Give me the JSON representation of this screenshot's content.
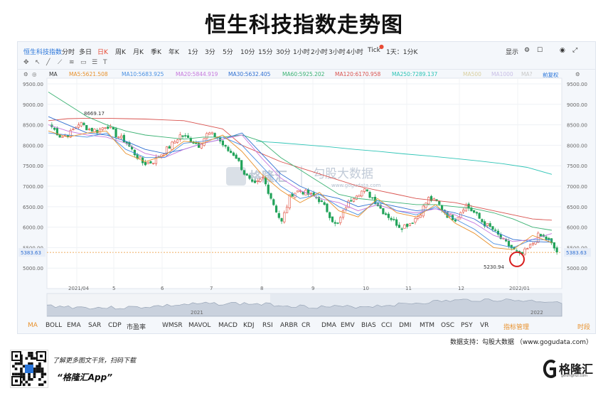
{
  "title": "恒生科技指数走势图",
  "toolbar": {
    "symbol": "恒生科技指数",
    "periods": [
      "分时",
      "多日",
      "日K",
      "周K",
      "月K",
      "季K",
      "年K",
      "1分",
      "3分",
      "5分",
      "10分",
      "15分",
      "30分",
      "1小时",
      "2小时",
      "3小时",
      "4小时",
      "Tick"
    ],
    "active_period": "日K",
    "interval_select": "1天：1分K",
    "display": "显示"
  },
  "toolbar2": {
    "ma_label": "MA"
  },
  "ma_legend": [
    {
      "label": "MA5:",
      "value": "5621.508",
      "color": "#e8912c"
    },
    {
      "label": "MA10:",
      "value": "5683.925",
      "color": "#4a90e2"
    },
    {
      "label": "MA20:",
      "value": "5844.919",
      "color": "#c678dd"
    },
    {
      "label": "MA30:",
      "value": "5632.405",
      "color": "#2f6fd1"
    },
    {
      "label": "MA60:",
      "value": "5925.202",
      "color": "#3bb273"
    },
    {
      "label": "MA120:",
      "value": "6170.958",
      "color": "#d9534f"
    },
    {
      "label": "MA250:",
      "value": "7289.137",
      "color": "#2ec4b6"
    }
  ],
  "ma_extra": [
    "MA500",
    "MA1000",
    "MA?"
  ],
  "adjust_label": "前复权",
  "watermark": {
    "brand": "格隆汇",
    "partner": "勾股大数据",
    "url": "www.gogudata.com"
  },
  "indicators": [
    "MA",
    "BOLL",
    "EMA",
    "SAR",
    "CDP",
    "市盈率",
    "WMSR",
    "MAVOL",
    "MACD",
    "KDJ",
    "RSI",
    "ARBR",
    "CR",
    "DMA",
    "EMV",
    "BIAS",
    "CCI",
    "DMI",
    "MTM",
    "OSC",
    "PSY",
    "VR"
  ],
  "indicator_manage": "指标管理",
  "indicator_right": "时段",
  "footer_note": "数据支持：勾股大数据 （www.gogudata.com）",
  "promo": {
    "line1": "了解更多图文干货，扫码下载",
    "line2": "“格隆汇App”"
  },
  "logo": {
    "text": "格隆汇",
    "sub": "gelonghui.com"
  },
  "chart_data": {
    "type": "candlestick",
    "title": "恒生科技指数走势图",
    "ylim": [
      4900,
      9500
    ],
    "y_ticks": [
      "9500.00",
      "9000.00",
      "8500.00",
      "8000.00",
      "7500.00",
      "7000.00",
      "6500.00",
      "6000.00",
      "5500.00",
      "5000.00"
    ],
    "x_ticks": [
      "2021/04",
      "5",
      "6",
      "7",
      "8",
      "9",
      "10",
      "11",
      "12",
      "2022/01"
    ],
    "overview_labels": [
      "2021",
      "2022"
    ],
    "last_price": "5383.63",
    "annotations": [
      {
        "label": "8669.17",
        "type": "high"
      },
      {
        "label": "5230.94",
        "type": "low"
      }
    ],
    "close_path": [
      8450,
      8200,
      8300,
      8550,
      8400,
      8350,
      8500,
      8250,
      8100,
      7800,
      7550,
      7600,
      7800,
      8000,
      8250,
      8150,
      8000,
      8300,
      8200,
      7900,
      7750,
      7300,
      7000,
      7200,
      6650,
      6100,
      6800,
      6900,
      6800,
      6700,
      6400,
      6000,
      6500,
      6800,
      6900,
      6700,
      6400,
      6200,
      6000,
      6100,
      6300,
      6700,
      6600,
      6300,
      6200,
      6550,
      6350,
      6100,
      5950,
      5700,
      5500,
      5300,
      5500,
      5800,
      5700,
      5400
    ],
    "series": [
      {
        "name": "MA120",
        "color": "#d9534f",
        "values": [
          8600,
          8650,
          8660,
          8660,
          8650,
          8640,
          8620,
          8600,
          8500,
          8400,
          8000,
          7800,
          7600,
          7450,
          7300,
          7150,
          7000,
          6900,
          6800,
          6700,
          6650,
          6600,
          6500,
          6400,
          6300,
          6200,
          6170
        ]
      },
      {
        "name": "MA250",
        "color": "#2ec4b6",
        "values": [
          8100,
          8060,
          8010,
          7960,
          7900,
          7850,
          7790,
          7740,
          7680,
          7620,
          7550,
          7460,
          7290
        ]
      },
      {
        "name": "MA60",
        "color": "#3bb273",
        "values": [
          9300,
          9000,
          8700,
          8500,
          8350,
          8250,
          8200,
          8150,
          8200,
          8200,
          8250,
          8100,
          7700,
          7400,
          7100,
          6800,
          6700,
          6650,
          6600,
          6550,
          6550,
          6500,
          6450,
          6350,
          6200,
          6000,
          5925
        ]
      },
      {
        "name": "MA30",
        "color": "#2f6fd1",
        "values": [
          8700,
          8500,
          8300,
          8250,
          8100,
          7900,
          7800,
          7900,
          8050,
          8150,
          8300,
          7800,
          7300,
          7000,
          6800,
          6700,
          6500,
          6600,
          6500,
          6400,
          6450,
          6350,
          6200,
          5900,
          5700,
          5650,
          5632
        ]
      },
      {
        "name": "MA20",
        "color": "#c678dd",
        "values": [
          8500,
          8350,
          8250,
          8200,
          8050,
          7800,
          7700,
          7900,
          8050,
          8150,
          8250,
          7700,
          7200,
          6900,
          6700,
          6600,
          6400,
          6550,
          6400,
          6350,
          6450,
          6300,
          6100,
          5800,
          5650,
          5700,
          5845
        ]
      },
      {
        "name": "MA10",
        "color": "#4a90e2",
        "values": [
          8300,
          8250,
          8200,
          8300,
          7900,
          7700,
          7700,
          8050,
          8100,
          8200,
          8000,
          7500,
          7000,
          6700,
          6800,
          6500,
          6300,
          6650,
          6400,
          6300,
          6500,
          6200,
          5950,
          5600,
          5500,
          5700,
          5684
        ]
      },
      {
        "name": "MA5",
        "color": "#e8912c",
        "values": [
          8350,
          8200,
          8300,
          8350,
          7800,
          7600,
          7750,
          8100,
          8050,
          8250,
          7850,
          7300,
          6900,
          6600,
          6850,
          6400,
          6250,
          6700,
          6350,
          6250,
          6550,
          6100,
          5850,
          5500,
          5450,
          5800,
          5622
        ]
      }
    ]
  }
}
